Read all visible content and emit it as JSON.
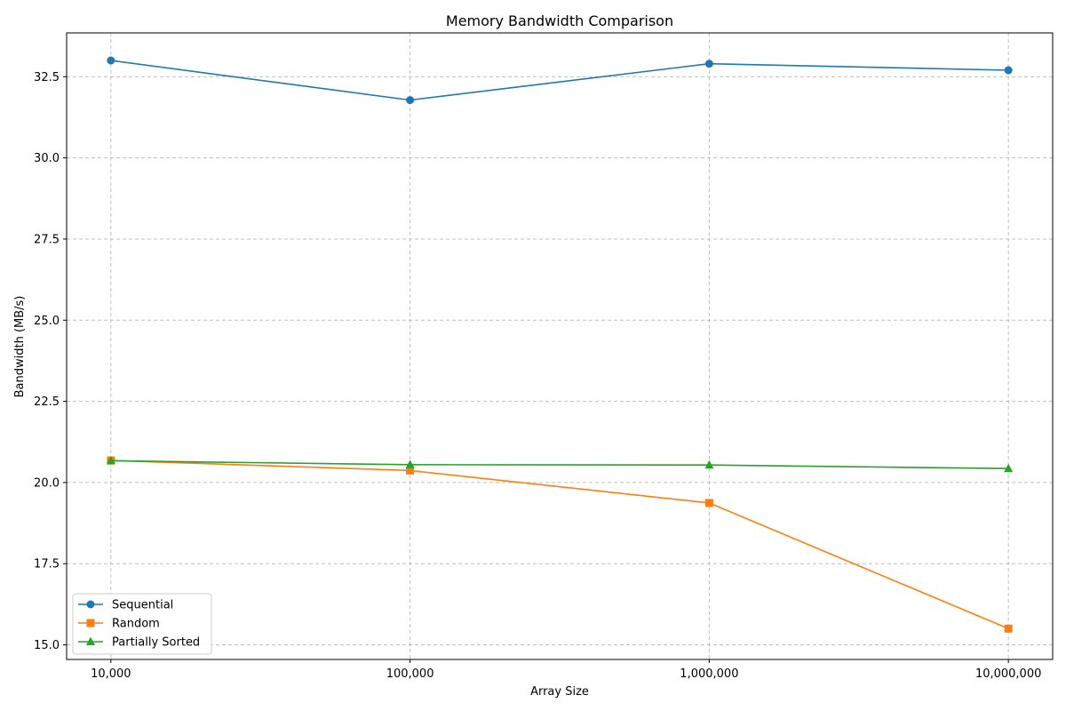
{
  "chart_data": {
    "type": "line",
    "title": "Memory Bandwidth Comparison",
    "xlabel": "Array Size",
    "ylabel": "Bandwidth (MB/s)",
    "x_scale": "log",
    "x": [
      10000,
      100000,
      1000000,
      10000000
    ],
    "x_tick_labels": [
      "10,000",
      "100,000",
      "1,000,000",
      "10,000,000"
    ],
    "y_ticks": [
      15.0,
      17.5,
      20.0,
      22.5,
      25.0,
      27.5,
      30.0,
      32.5
    ],
    "y_tick_labels": [
      "15.0",
      "17.5",
      "20.0",
      "22.5",
      "25.0",
      "27.5",
      "30.0",
      "32.5"
    ],
    "ylim": [
      14.55,
      33.85
    ],
    "grid": true,
    "legend_position": "lower-left",
    "series": [
      {
        "name": "Sequential",
        "values": [
          33.0,
          31.78,
          32.9,
          32.7
        ],
        "color": "#1f77b4",
        "marker": "circle"
      },
      {
        "name": "Random",
        "values": [
          20.68,
          20.37,
          19.37,
          15.5
        ],
        "color": "#ff7f0e",
        "marker": "square"
      },
      {
        "name": "Partially Sorted",
        "values": [
          20.67,
          20.55,
          20.54,
          20.43
        ],
        "color": "#2ca02c",
        "marker": "triangle"
      }
    ]
  }
}
